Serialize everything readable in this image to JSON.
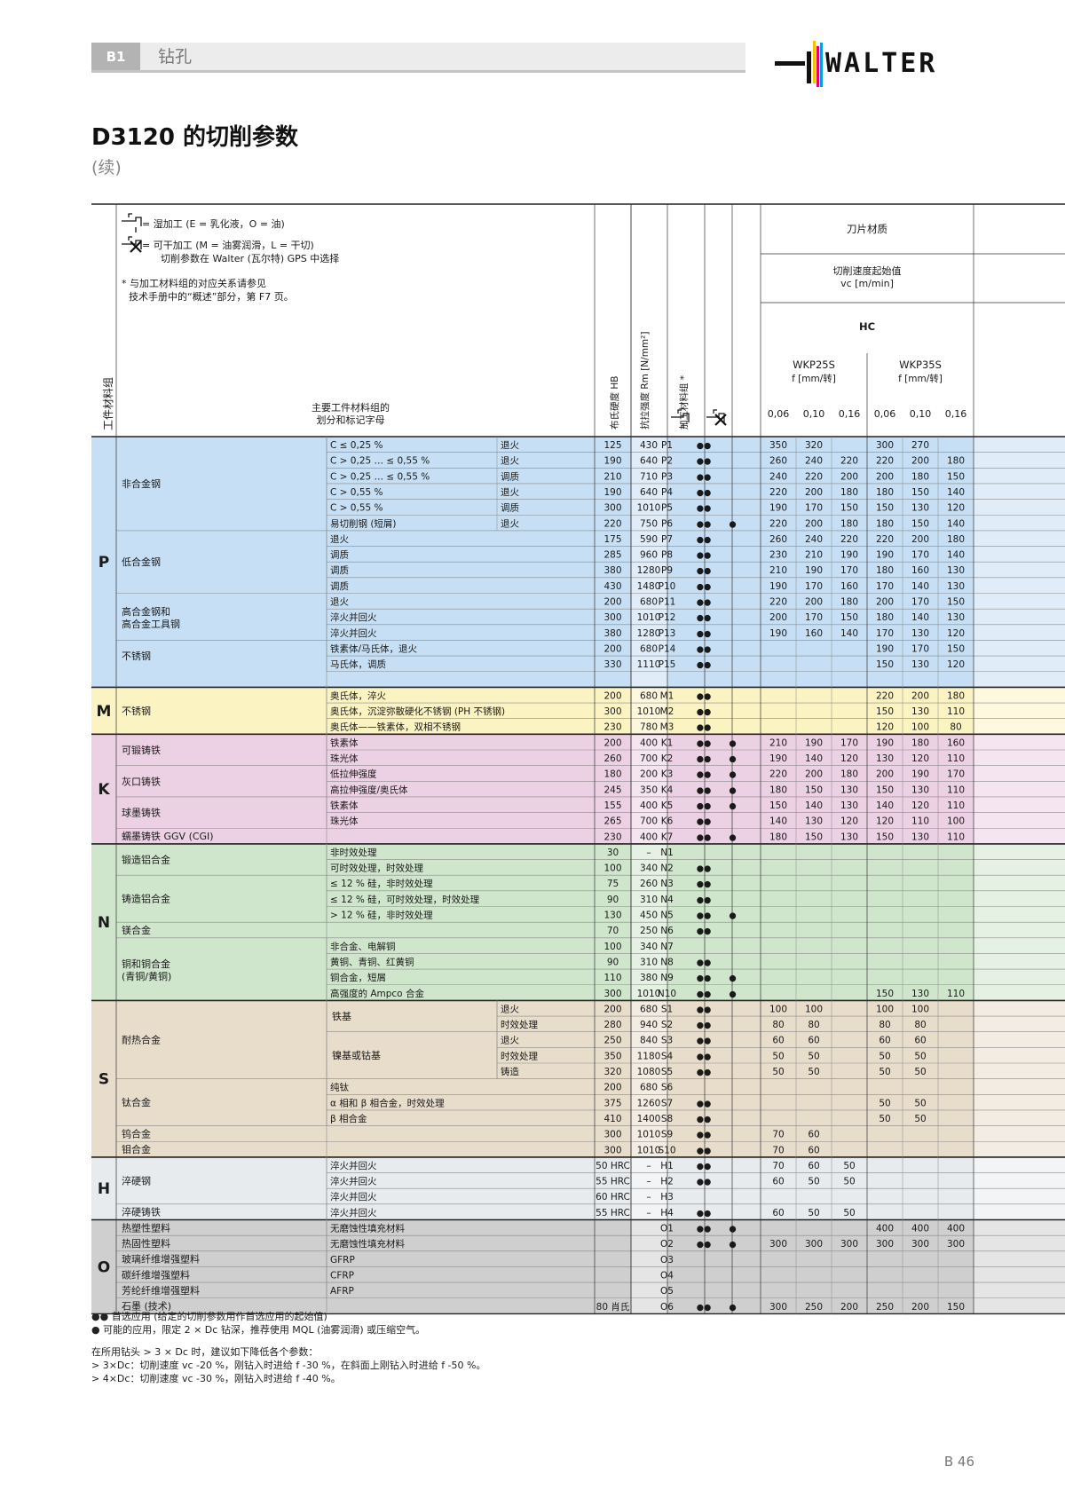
{
  "header": {
    "section": "B1",
    "title": "钻孔",
    "logo": "WALTER"
  },
  "page": {
    "title": "D3120 的切削参数",
    "subtitle": "(续)",
    "number": "B 46"
  },
  "legend": {
    "wet": "= 湿加工 (E = 乳化液，O = 油)",
    "dry": "= 可干加工 (M = 油雾润滑，L = 干切)",
    "dry2": "切削参数在 Walter (瓦尔特) GPS 中选择",
    "ref1": "* 与加工材料组的对应关系请参见",
    "ref2": "技术手册中的“概述”部分，第 F7 页。",
    "wet_icon": "wet-machining-icon",
    "dry_icon": "dry-machining-icon"
  },
  "columns": {
    "group_label": "工件材料组",
    "main_label": "主要工件材料组的划分和标记字母",
    "hardness": "布氏硬度 HB",
    "tensile": "抗拉强度 Rm [N/mm²]",
    "matgroup": "加工材料组 *",
    "grade_title": "刀片材质",
    "vc_title": "切削速度起始值",
    "vc_unit": "vc [m/min]",
    "coating": "HC",
    "grades": [
      {
        "name": "WKP25S",
        "feed": "f [mm/转]"
      },
      {
        "name": "WKP35S",
        "feed": "f [mm/转]"
      }
    ],
    "feeds": [
      "0,06",
      "0,10",
      "0,16",
      "0,06",
      "0,10",
      "0,16"
    ]
  },
  "groups": [
    {
      "letter": "P",
      "start": 0,
      "end": 15,
      "color": "#c6dff4"
    },
    {
      "letter": "M",
      "start": 16,
      "end": 18,
      "color": "#fbf3c2"
    },
    {
      "letter": "K",
      "start": 19,
      "end": 25,
      "color": "#ecd0e3"
    },
    {
      "letter": "N",
      "start": 26,
      "end": 35,
      "color": "#cfe6cc"
    },
    {
      "letter": "S",
      "start": 36,
      "end": 45,
      "color": "#e8dccb"
    },
    {
      "letter": "H",
      "start": 46,
      "end": 49,
      "color": "#e8ebee"
    },
    {
      "letter": "O",
      "start": 50,
      "end": 55,
      "color": "#cfcfcf"
    }
  ],
  "main_cells": [
    {
      "text": "非合金钢",
      "start": 0,
      "end": 5
    },
    {
      "text": "低合金钢",
      "start": 6,
      "end": 9
    },
    {
      "text": "高合金钢和",
      "text2": "高合金工具钢",
      "start": 10,
      "end": 12
    },
    {
      "text": "不锈钢",
      "start": 13,
      "end": 14
    },
    {
      "text": "不锈钢",
      "start": 16,
      "end": 18
    },
    {
      "text": "可锻铸铁",
      "start": 19,
      "end": 20
    },
    {
      "text": "灰口铸铁",
      "start": 21,
      "end": 22
    },
    {
      "text": "球墨铸铁",
      "start": 23,
      "end": 24
    },
    {
      "text": "蠕墨铸铁 GGV (CGI)",
      "start": 25,
      "end": 25
    },
    {
      "text": "锻造铝合金",
      "start": 26,
      "end": 27
    },
    {
      "text": "铸造铝合金",
      "start": 28,
      "end": 30
    },
    {
      "text": "镁合金",
      "start": 31,
      "end": 31
    },
    {
      "text": "铜和铜合金",
      "text2": "(青铜/黄铜)",
      "start": 32,
      "end": 35
    },
    {
      "text": "耐热合金",
      "start": 36,
      "end": 40
    },
    {
      "text": "钛合金",
      "start": 41,
      "end": 43
    },
    {
      "text": "钨合金",
      "start": 44,
      "end": 44
    },
    {
      "text": "钼合金",
      "start": 45,
      "end": 45
    },
    {
      "text": "淬硬钢",
      "start": 46,
      "end": 48
    },
    {
      "text": "淬硬铸铁",
      "start": 49,
      "end": 49
    },
    {
      "text": "热塑性塑料",
      "start": 50,
      "end": 50
    },
    {
      "text": "热固性塑料",
      "start": 51,
      "end": 51
    },
    {
      "text": "玻璃纤维增强塑料",
      "start": 52,
      "end": 52
    },
    {
      "text": "碳纤维增强塑料",
      "start": 53,
      "end": 53
    },
    {
      "text": "芳纶纤维增强塑料",
      "start": 54,
      "end": 54
    },
    {
      "text": "石墨 (技术)",
      "start": 55,
      "end": 55
    }
  ],
  "sub_cells": [
    {
      "text": "铁基",
      "start": 36,
      "end": 37
    },
    {
      "text": "镍基或钴基",
      "start": 38,
      "end": 40
    }
  ],
  "rows": [
    {
      "d": "C ≤ 0,25 %",
      "c": "退火",
      "hb": "125",
      "rm": "430",
      "mg": "P1",
      "wet": "●●",
      "dry": "",
      "v": [
        "350",
        "320",
        "",
        "300",
        "270",
        ""
      ]
    },
    {
      "d": "C > 0,25 … ≤ 0,55 %",
      "c": "退火",
      "hb": "190",
      "rm": "640",
      "mg": "P2",
      "wet": "●●",
      "dry": "",
      "v": [
        "260",
        "240",
        "220",
        "220",
        "200",
        "180"
      ]
    },
    {
      "d": "C > 0,25 … ≤ 0,55 %",
      "c": "调质",
      "hb": "210",
      "rm": "710",
      "mg": "P3",
      "wet": "●●",
      "dry": "",
      "v": [
        "240",
        "220",
        "200",
        "200",
        "180",
        "150"
      ]
    },
    {
      "d": "C > 0,55 %",
      "c": "退火",
      "hb": "190",
      "rm": "640",
      "mg": "P4",
      "wet": "●●",
      "dry": "",
      "v": [
        "220",
        "200",
        "180",
        "180",
        "150",
        "140"
      ]
    },
    {
      "d": "C > 0,55 %",
      "c": "调质",
      "hb": "300",
      "rm": "1010",
      "mg": "P5",
      "wet": "●●",
      "dry": "",
      "v": [
        "190",
        "170",
        "150",
        "150",
        "130",
        "120"
      ]
    },
    {
      "d": "易切削钢 (短屑)",
      "c": "退火",
      "hb": "220",
      "rm": "750",
      "mg": "P6",
      "wet": "●●",
      "dry": "●",
      "v": [
        "220",
        "200",
        "180",
        "180",
        "150",
        "140"
      ]
    },
    {
      "d": "退火",
      "c": "",
      "hb": "175",
      "rm": "590",
      "mg": "P7",
      "wet": "●●",
      "dry": "",
      "v": [
        "260",
        "240",
        "220",
        "220",
        "200",
        "180"
      ]
    },
    {
      "d": "调质",
      "c": "",
      "hb": "285",
      "rm": "960",
      "mg": "P8",
      "wet": "●●",
      "dry": "",
      "v": [
        "230",
        "210",
        "190",
        "190",
        "170",
        "140"
      ]
    },
    {
      "d": "调质",
      "c": "",
      "hb": "380",
      "rm": "1280",
      "mg": "P9",
      "wet": "●●",
      "dry": "",
      "v": [
        "210",
        "190",
        "170",
        "180",
        "160",
        "130"
      ]
    },
    {
      "d": "调质",
      "c": "",
      "hb": "430",
      "rm": "1480",
      "mg": "P10",
      "wet": "●●",
      "dry": "",
      "v": [
        "190",
        "170",
        "160",
        "170",
        "140",
        "130"
      ]
    },
    {
      "d": "退火",
      "c": "",
      "hb": "200",
      "rm": "680",
      "mg": "P11",
      "wet": "●●",
      "dry": "",
      "v": [
        "220",
        "200",
        "180",
        "200",
        "170",
        "150"
      ]
    },
    {
      "d": "淬火并回火",
      "c": "",
      "hb": "300",
      "rm": "1010",
      "mg": "P12",
      "wet": "●●",
      "dry": "",
      "v": [
        "200",
        "170",
        "150",
        "180",
        "140",
        "130"
      ]
    },
    {
      "d": "淬火并回火",
      "c": "",
      "hb": "380",
      "rm": "1280",
      "mg": "P13",
      "wet": "●●",
      "dry": "",
      "v": [
        "190",
        "160",
        "140",
        "170",
        "130",
        "120"
      ]
    },
    {
      "d": "铁素体/马氏体，退火",
      "c": "",
      "hb": "200",
      "rm": "680",
      "mg": "P14",
      "wet": "●●",
      "dry": "",
      "v": [
        "",
        "",
        "",
        "190",
        "170",
        "150"
      ]
    },
    {
      "d": "马氏体，调质",
      "c": "",
      "hb": "330",
      "rm": "1110",
      "mg": "P15",
      "wet": "●●",
      "dry": "",
      "v": [
        "",
        "",
        "",
        "150",
        "130",
        "120"
      ]
    },
    {
      "d": "",
      "c": "",
      "hb": "",
      "rm": "",
      "mg": "",
      "wet": "",
      "dry": "",
      "v": [
        "",
        "",
        "",
        "",
        "",
        ""
      ]
    },
    {
      "d": "奥氏体，淬火",
      "c": "",
      "hb": "200",
      "rm": "680",
      "mg": "M1",
      "wet": "●●",
      "dry": "",
      "v": [
        "",
        "",
        "",
        "220",
        "200",
        "180"
      ]
    },
    {
      "d": "奥氏体，沉淀弥散硬化不锈钢 (PH 不锈钢)",
      "c": "",
      "hb": "300",
      "rm": "1010",
      "mg": "M2",
      "wet": "●●",
      "dry": "",
      "v": [
        "",
        "",
        "",
        "150",
        "130",
        "110"
      ]
    },
    {
      "d": "奥氏体——铁素体，双相不锈钢",
      "c": "",
      "hb": "230",
      "rm": "780",
      "mg": "M3",
      "wet": "●●",
      "dry": "",
      "v": [
        "",
        "",
        "",
        "120",
        "100",
        "80"
      ]
    },
    {
      "d": "铁素体",
      "c": "",
      "hb": "200",
      "rm": "400",
      "mg": "K1",
      "wet": "●●",
      "dry": "●",
      "v": [
        "210",
        "190",
        "170",
        "190",
        "180",
        "160"
      ]
    },
    {
      "d": "珠光体",
      "c": "",
      "hb": "260",
      "rm": "700",
      "mg": "K2",
      "wet": "●●",
      "dry": "●",
      "v": [
        "190",
        "140",
        "120",
        "130",
        "120",
        "110"
      ]
    },
    {
      "d": "低拉伸强度",
      "c": "",
      "hb": "180",
      "rm": "200",
      "mg": "K3",
      "wet": "●●",
      "dry": "●",
      "v": [
        "220",
        "200",
        "180",
        "200",
        "190",
        "170"
      ]
    },
    {
      "d": "高拉伸强度/奥氏体",
      "c": "",
      "hb": "245",
      "rm": "350",
      "mg": "K4",
      "wet": "●●",
      "dry": "●",
      "v": [
        "180",
        "150",
        "130",
        "150",
        "130",
        "110"
      ]
    },
    {
      "d": "铁素体",
      "c": "",
      "hb": "155",
      "rm": "400",
      "mg": "K5",
      "wet": "●●",
      "dry": "●",
      "v": [
        "150",
        "140",
        "130",
        "140",
        "120",
        "110"
      ]
    },
    {
      "d": "珠光体",
      "c": "",
      "hb": "265",
      "rm": "700",
      "mg": "K6",
      "wet": "●●",
      "dry": "",
      "v": [
        "140",
        "130",
        "120",
        "120",
        "110",
        "100"
      ]
    },
    {
      "d": "",
      "c": "",
      "hb": "230",
      "rm": "400",
      "mg": "K7",
      "wet": "●●",
      "dry": "●",
      "v": [
        "180",
        "150",
        "130",
        "150",
        "130",
        "110"
      ]
    },
    {
      "d": "非时效处理",
      "c": "",
      "hb": "30",
      "rm": "–",
      "mg": "N1",
      "wet": "",
      "dry": "",
      "v": [
        "",
        "",
        "",
        "",
        "",
        ""
      ]
    },
    {
      "d": "可时效处理，时效处理",
      "c": "",
      "hb": "100",
      "rm": "340",
      "mg": "N2",
      "wet": "●●",
      "dry": "",
      "v": [
        "",
        "",
        "",
        "",
        "",
        ""
      ]
    },
    {
      "d": "≤ 12 % 硅，非时效处理",
      "c": "",
      "hb": "75",
      "rm": "260",
      "mg": "N3",
      "wet": "●●",
      "dry": "",
      "v": [
        "",
        "",
        "",
        "",
        "",
        ""
      ]
    },
    {
      "d": "≤ 12 % 硅，可时效处理，时效处理",
      "c": "",
      "hb": "90",
      "rm": "310",
      "mg": "N4",
      "wet": "●●",
      "dry": "",
      "v": [
        "",
        "",
        "",
        "",
        "",
        ""
      ]
    },
    {
      "d": "> 12 % 硅，非时效处理",
      "c": "",
      "hb": "130",
      "rm": "450",
      "mg": "N5",
      "wet": "●●",
      "dry": "●",
      "v": [
        "",
        "",
        "",
        "",
        "",
        ""
      ]
    },
    {
      "d": "",
      "c": "",
      "hb": "70",
      "rm": "250",
      "mg": "N6",
      "wet": "●●",
      "dry": "",
      "v": [
        "",
        "",
        "",
        "",
        "",
        ""
      ]
    },
    {
      "d": "非合金、电解铜",
      "c": "",
      "hb": "100",
      "rm": "340",
      "mg": "N7",
      "wet": "",
      "dry": "",
      "v": [
        "",
        "",
        "",
        "",
        "",
        ""
      ]
    },
    {
      "d": "黄铜、青铜、红黄铜",
      "c": "",
      "hb": "90",
      "rm": "310",
      "mg": "N8",
      "wet": "●●",
      "dry": "",
      "v": [
        "",
        "",
        "",
        "",
        "",
        ""
      ]
    },
    {
      "d": "铜合金，短屑",
      "c": "",
      "hb": "110",
      "rm": "380",
      "mg": "N9",
      "wet": "●●",
      "dry": "●",
      "v": [
        "",
        "",
        "",
        "",
        "",
        ""
      ]
    },
    {
      "d": "高强度的 Ampco 合金",
      "c": "",
      "hb": "300",
      "rm": "1010",
      "mg": "N10",
      "wet": "●●",
      "dry": "●",
      "v": [
        "",
        "",
        "",
        "150",
        "130",
        "110"
      ]
    },
    {
      "d": "",
      "c": "退火",
      "hb": "200",
      "rm": "680",
      "mg": "S1",
      "wet": "●●",
      "dry": "",
      "v": [
        "100",
        "100",
        "",
        "100",
        "100",
        ""
      ]
    },
    {
      "d": "",
      "c": "时效处理",
      "hb": "280",
      "rm": "940",
      "mg": "S2",
      "wet": "●●",
      "dry": "",
      "v": [
        "80",
        "80",
        "",
        "80",
        "80",
        ""
      ]
    },
    {
      "d": "",
      "c": "退火",
      "hb": "250",
      "rm": "840",
      "mg": "S3",
      "wet": "●●",
      "dry": "",
      "v": [
        "60",
        "60",
        "",
        "60",
        "60",
        ""
      ]
    },
    {
      "d": "",
      "c": "时效处理",
      "hb": "350",
      "rm": "1180",
      "mg": "S4",
      "wet": "●●",
      "dry": "",
      "v": [
        "50",
        "50",
        "",
        "50",
        "50",
        ""
      ]
    },
    {
      "d": "",
      "c": "铸造",
      "hb": "320",
      "rm": "1080",
      "mg": "S5",
      "wet": "●●",
      "dry": "",
      "v": [
        "50",
        "50",
        "",
        "50",
        "50",
        ""
      ]
    },
    {
      "d": "纯钛",
      "c": "",
      "hb": "200",
      "rm": "680",
      "mg": "S6",
      "wet": "",
      "dry": "",
      "v": [
        "",
        "",
        "",
        "",
        "",
        ""
      ]
    },
    {
      "d": "α 相和 β 相合金，时效处理",
      "c": "",
      "hb": "375",
      "rm": "1260",
      "mg": "S7",
      "wet": "●●",
      "dry": "",
      "v": [
        "",
        "",
        "",
        "50",
        "50",
        ""
      ]
    },
    {
      "d": "β 相合金",
      "c": "",
      "hb": "410",
      "rm": "1400",
      "mg": "S8",
      "wet": "●●",
      "dry": "",
      "v": [
        "",
        "",
        "",
        "50",
        "50",
        ""
      ]
    },
    {
      "d": "",
      "c": "",
      "hb": "300",
      "rm": "1010",
      "mg": "S9",
      "wet": "●●",
      "dry": "",
      "v": [
        "70",
        "60",
        "",
        "",
        "",
        ""
      ]
    },
    {
      "d": "",
      "c": "",
      "hb": "300",
      "rm": "1010",
      "mg": "S10",
      "wet": "●●",
      "dry": "",
      "v": [
        "70",
        "60",
        "",
        "",
        "",
        ""
      ]
    },
    {
      "d": "淬火并回火",
      "c": "",
      "hb": "50 HRC",
      "rm": "–",
      "mg": "H1",
      "wet": "●●",
      "dry": "",
      "v": [
        "70",
        "60",
        "50",
        "",
        "",
        ""
      ]
    },
    {
      "d": "淬火并回火",
      "c": "",
      "hb": "55 HRC",
      "rm": "–",
      "mg": "H2",
      "wet": "●●",
      "dry": "",
      "v": [
        "60",
        "50",
        "50",
        "",
        "",
        ""
      ]
    },
    {
      "d": "淬火并回火",
      "c": "",
      "hb": "60 HRC",
      "rm": "–",
      "mg": "H3",
      "wet": "",
      "dry": "",
      "v": [
        "",
        "",
        "",
        "",
        "",
        ""
      ]
    },
    {
      "d": "淬火并回火",
      "c": "",
      "hb": "55 HRC",
      "rm": "–",
      "mg": "H4",
      "wet": "●●",
      "dry": "",
      "v": [
        "60",
        "50",
        "50",
        "",
        "",
        ""
      ]
    },
    {
      "d": "无磨蚀性填充材料",
      "c": "",
      "hb": "",
      "rm": "",
      "mg": "O1",
      "wet": "●●",
      "dry": "●",
      "v": [
        "",
        "",
        "",
        "400",
        "400",
        "400"
      ]
    },
    {
      "d": "无磨蚀性填充材料",
      "c": "",
      "hb": "",
      "rm": "",
      "mg": "O2",
      "wet": "●●",
      "dry": "●",
      "v": [
        "300",
        "300",
        "300",
        "300",
        "300",
        "300"
      ]
    },
    {
      "d": "GFRP",
      "c": "",
      "hb": "",
      "rm": "",
      "mg": "O3",
      "wet": "",
      "dry": "",
      "v": [
        "",
        "",
        "",
        "",
        "",
        ""
      ]
    },
    {
      "d": "CFRP",
      "c": "",
      "hb": "",
      "rm": "",
      "mg": "O4",
      "wet": "",
      "dry": "",
      "v": [
        "",
        "",
        "",
        "",
        "",
        ""
      ]
    },
    {
      "d": "AFRP",
      "c": "",
      "hb": "",
      "rm": "",
      "mg": "O5",
      "wet": "",
      "dry": "",
      "v": [
        "",
        "",
        "",
        "",
        "",
        ""
      ]
    },
    {
      "d": "",
      "c": "",
      "hb": "80 肖氏",
      "rm": "",
      "mg": "O6",
      "wet": "●●",
      "dry": "●",
      "v": [
        "300",
        "250",
        "200",
        "250",
        "200",
        "150"
      ]
    }
  ],
  "footnotes": {
    "line1": "●●  首选应用 (给定的切削参数用作首选应用的起始值)",
    "line2": "●    可能的应用，限定 2 × Dc 钻深，推荐使用 MQL (油雾润滑) 或压缩空气。",
    "line3": "在所用钻头 > 3 × Dc 时，建议如下降低各个参数：",
    "line4": "> 3×Dc：切削速度 vc -20 %，刚钻入时进给 f -30 %，在斜面上刚钻入时进给 f -50 %。",
    "line5": "> 4×Dc：切削速度 vc -30 %，刚钻入时进给 f -40 %。"
  }
}
